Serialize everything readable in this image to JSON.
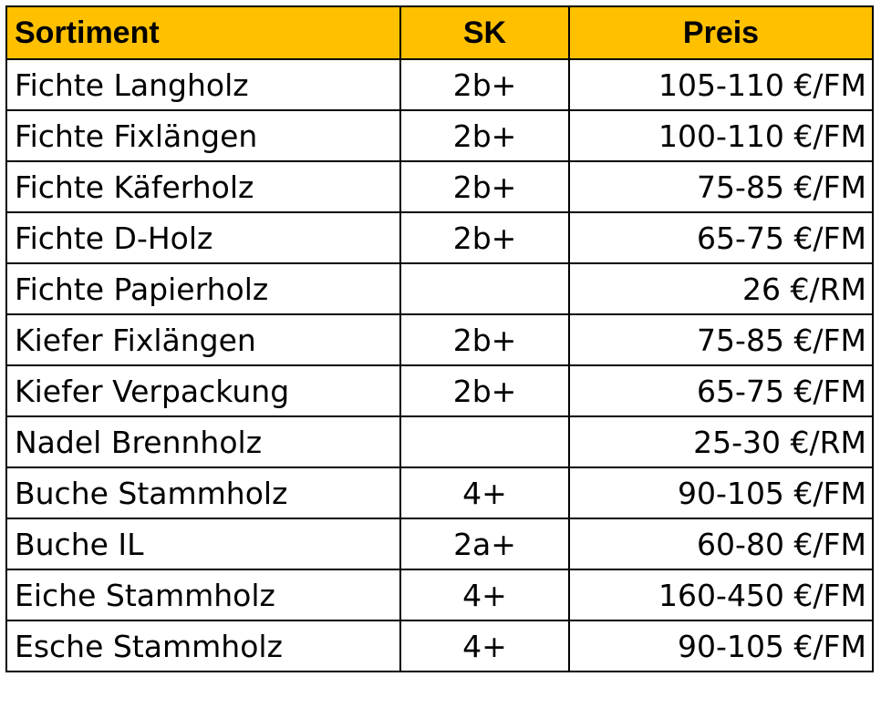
{
  "colors": {
    "header_background": "#ffc000",
    "border": "#000000",
    "text": "#000000"
  },
  "table": {
    "headers": {
      "sortiment": "Sortiment",
      "sk": "SK",
      "preis": "Preis"
    },
    "rows": [
      {
        "sortiment": "Fichte Langholz",
        "sk": "2b+",
        "preis": "105-110 €/FM"
      },
      {
        "sortiment": "Fichte Fixlängen",
        "sk": "2b+",
        "preis": "100-110 €/FM"
      },
      {
        "sortiment": "Fichte Käferholz",
        "sk": "2b+",
        "preis": "75-85 €/FM"
      },
      {
        "sortiment": "Fichte D-Holz",
        "sk": "2b+",
        "preis": "65-75 €/FM"
      },
      {
        "sortiment": "Fichte Papierholz",
        "sk": "",
        "preis": "26 €/RM"
      },
      {
        "sortiment": "Kiefer Fixlängen",
        "sk": "2b+",
        "preis": "75-85 €/FM"
      },
      {
        "sortiment": "Kiefer Verpackung",
        "sk": "2b+",
        "preis": "65-75 €/FM"
      },
      {
        "sortiment": "Nadel Brennholz",
        "sk": "",
        "preis": "25-30 €/RM"
      },
      {
        "sortiment": "Buche Stammholz",
        "sk": "4+",
        "preis": "90-105 €/FM"
      },
      {
        "sortiment": "Buche IL",
        "sk": "2a+",
        "preis": "60-80 €/FM"
      },
      {
        "sortiment": "Eiche Stammholz",
        "sk": "4+",
        "preis": "160-450 €/FM"
      },
      {
        "sortiment": "Esche Stammholz",
        "sk": "4+",
        "preis": "90-105 €/FM"
      }
    ]
  }
}
